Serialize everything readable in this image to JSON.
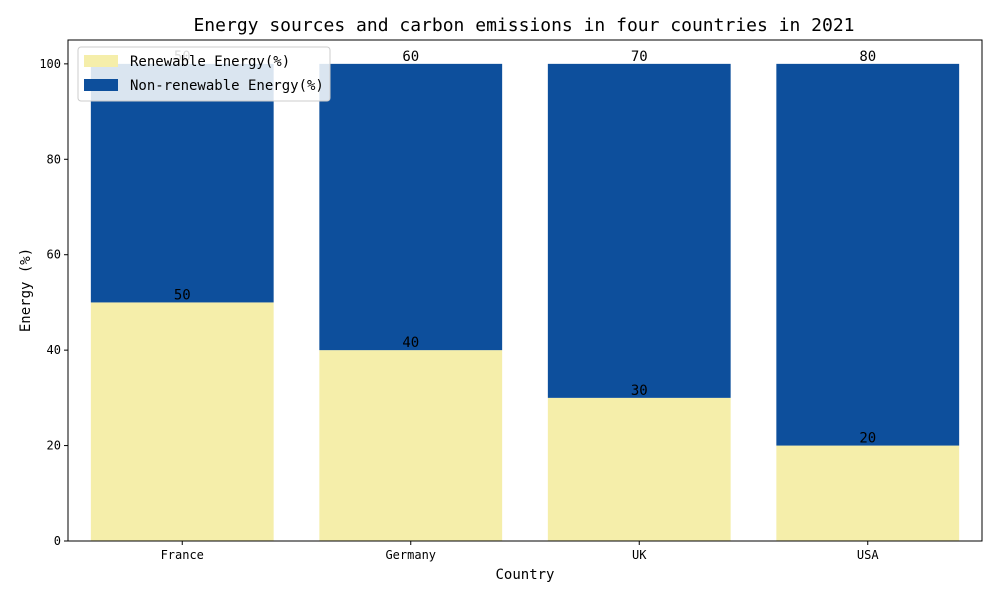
{
  "chart_data": {
    "type": "bar",
    "stacked": true,
    "title": "Energy sources and carbon emissions in four countries in 2021",
    "xlabel": "Country",
    "ylabel": "Energy (%)",
    "ylim": [
      0,
      105
    ],
    "yticks": [
      0,
      20,
      40,
      60,
      80,
      100
    ],
    "categories": [
      "France",
      "Germany",
      "UK",
      "USA"
    ],
    "series": [
      {
        "name": "Renewable Energy(%)",
        "values": [
          50,
          40,
          30,
          20
        ],
        "color": "#f5eeaa"
      },
      {
        "name": "Non-renewable Energy(%)",
        "values": [
          50,
          60,
          70,
          80
        ],
        "color": "#0d4f9c"
      }
    ],
    "legend_position": "top-left",
    "grid": false
  }
}
